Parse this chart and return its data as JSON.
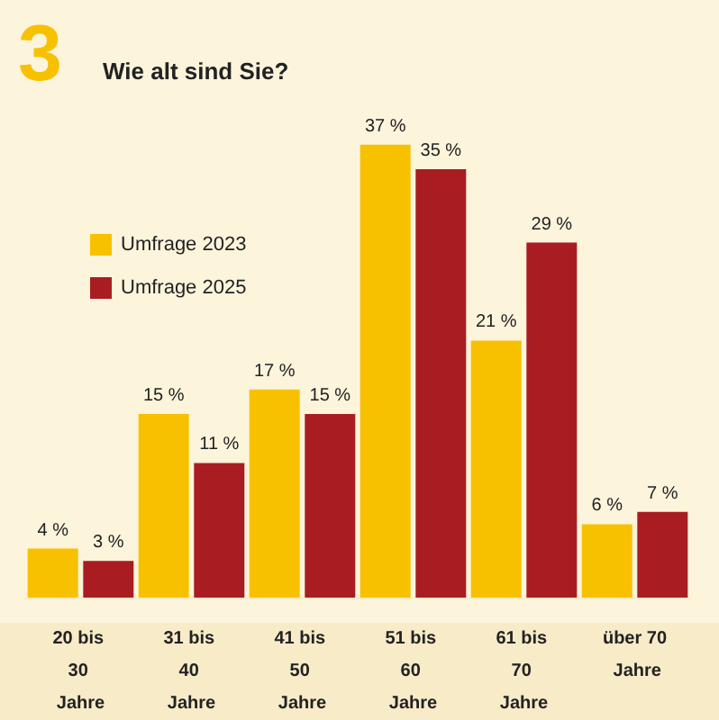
{
  "chart_data": {
    "type": "bar",
    "title": "Wie alt sind Sie?",
    "annotations": [
      "3"
    ],
    "categories": [
      "20 bis 30 Jahre",
      "31 bis 40 Jahre",
      "41 bis 50 Jahre",
      "51 bis 60 Jahre",
      "61 bis 70 Jahre",
      "über 70 Jahre"
    ],
    "series": [
      {
        "name": "Umfrage 2023",
        "color": "#f8c100",
        "values": [
          4,
          15,
          17,
          37,
          21,
          6
        ],
        "value_labels": [
          "4 %",
          "15 %",
          "17 %",
          "37 %",
          "21 %",
          "6 %"
        ]
      },
      {
        "name": "Umfrage 2025",
        "color": "#a91d22",
        "values": [
          3,
          11,
          15,
          35,
          29,
          7
        ],
        "value_labels": [
          "3 %",
          "11 %",
          "15 %",
          "35 %",
          "29 %",
          "7 %"
        ]
      }
    ],
    "legend": "top left"
  }
}
